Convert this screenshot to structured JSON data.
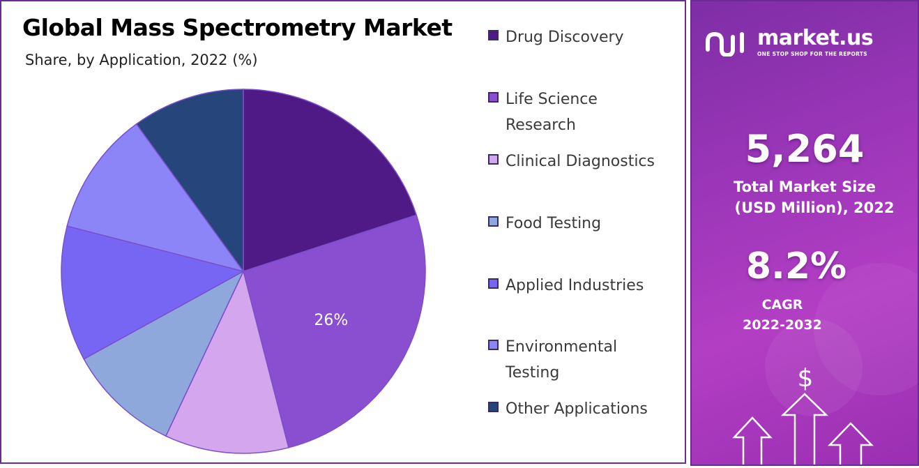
{
  "chart_data": {
    "type": "pie",
    "title": "Global Mass Spectrometry Market",
    "subtitle": "Share, by Application, 2022 (%)",
    "slices": [
      {
        "name": "Drug Discovery",
        "value": 20,
        "color": "#4f1a85"
      },
      {
        "name": "Life Science Research",
        "value": 26,
        "color": "#8a4fd0",
        "label": "26%"
      },
      {
        "name": "Clinical Diagnostics",
        "value": 11,
        "color": "#d3a6ee"
      },
      {
        "name": "Food Testing",
        "value": 10,
        "color": "#8ea8dc"
      },
      {
        "name": "Applied Industries",
        "value": 12,
        "color": "#7766f4"
      },
      {
        "name": "Environmental Testing",
        "value": 11,
        "color": "#8b85f7"
      },
      {
        "name": "Other Applications",
        "value": 10,
        "color": "#26457a"
      }
    ],
    "legend_position": "right"
  },
  "legend": [
    {
      "lines": [
        "Drug Discovery"
      ]
    },
    {
      "lines": [
        "Life Science",
        "Research"
      ]
    },
    {
      "lines": [
        "Clinical Diagnostics"
      ]
    },
    {
      "lines": [
        "Food Testing"
      ]
    },
    {
      "lines": [
        "Applied Industries"
      ]
    },
    {
      "lines": [
        "Environmental",
        "Testing"
      ]
    },
    {
      "lines": [
        "Other Applications"
      ]
    }
  ],
  "brand": {
    "name": "market.us",
    "tagline": "ONE STOP SHOP FOR THE REPORTS",
    "logo_icon": "market-us-logo-icon"
  },
  "stats": {
    "market_size_value": "5,264",
    "market_size_label_1": "Total Market Size",
    "market_size_label_2": "(USD Million), 2022",
    "cagr_value": "8.2%",
    "cagr_label_1": "CAGR",
    "cagr_label_2": "2022-2032"
  },
  "decor": {
    "dollar_sign": "$",
    "arrow_icon": "up-arrow-icon"
  },
  "colors": {
    "panel_border": "#6a2c91",
    "info_panel": "#9b36b8",
    "slice_border": "#7a4fc9"
  }
}
